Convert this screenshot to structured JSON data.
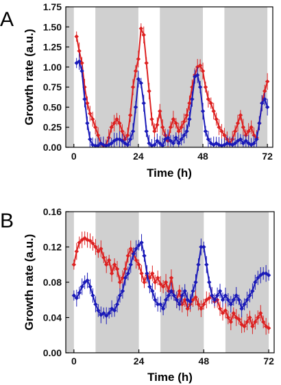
{
  "colors": {
    "red": "#dd2020",
    "blue": "#1a1ab8",
    "shade": "#d0d0d0"
  },
  "chart_data": [
    {
      "panel": "A",
      "type": "line",
      "xlabel": "Time (h)",
      "ylabel": "Growth rate (a.u.)",
      "xlim": [
        -3,
        74
      ],
      "ylim": [
        0,
        1.75
      ],
      "xticks": [
        "0",
        "24",
        "48",
        "72"
      ],
      "yticks": [
        "0.00",
        "0.25",
        "0.50",
        "0.75",
        "1.00",
        "1.25",
        "1.50",
        "1.75"
      ],
      "grid": false,
      "shaded_intervals": [
        [
          -3,
          0
        ],
        [
          8,
          24
        ],
        [
          32,
          48
        ],
        [
          56,
          72
        ]
      ],
      "series": [
        {
          "color": "red",
          "x": [
            1,
            2,
            3,
            4,
            5,
            6,
            7,
            8,
            9,
            10,
            11,
            12,
            13,
            14,
            15,
            16,
            17,
            18,
            19,
            20,
            21,
            22,
            23,
            24,
            25,
            26,
            27,
            28,
            29,
            30,
            31,
            32,
            33,
            34,
            35,
            36,
            37,
            38,
            39,
            40,
            41,
            42,
            43,
            44,
            45,
            46,
            47,
            48,
            49,
            50,
            51,
            52,
            53,
            54,
            55,
            56,
            57,
            58,
            59,
            60,
            61,
            62,
            63,
            64,
            65,
            66,
            67,
            68,
            69,
            70,
            71,
            72
          ],
          "y": [
            1.38,
            1.2,
            1.05,
            0.75,
            0.55,
            0.42,
            0.35,
            0.25,
            0.15,
            0.05,
            0.02,
            0.03,
            0.12,
            0.25,
            0.3,
            0.35,
            0.3,
            0.2,
            0.1,
            0.15,
            0.4,
            0.75,
            0.95,
            1.1,
            1.48,
            1.4,
            1.05,
            0.7,
            0.35,
            0.2,
            0.28,
            0.45,
            0.25,
            0.15,
            0.08,
            0.25,
            0.35,
            0.3,
            0.2,
            0.25,
            0.32,
            0.4,
            0.55,
            0.75,
            0.9,
            1.0,
            1.02,
            0.95,
            0.75,
            0.6,
            0.55,
            0.45,
            0.35,
            0.25,
            0.2,
            0.15,
            0.1,
            0.05,
            0.1,
            0.2,
            0.3,
            0.4,
            0.25,
            0.15,
            0.2,
            0.25,
            0.15,
            0.12,
            0.3,
            0.55,
            0.7,
            0.82
          ]
        },
        {
          "color": "blue",
          "x": [
            1,
            2,
            3,
            4,
            5,
            6,
            7,
            8,
            9,
            10,
            11,
            12,
            13,
            14,
            15,
            16,
            17,
            18,
            19,
            20,
            21,
            22,
            23,
            24,
            25,
            26,
            27,
            28,
            29,
            30,
            31,
            32,
            33,
            34,
            35,
            36,
            37,
            38,
            39,
            40,
            41,
            42,
            43,
            44,
            45,
            46,
            47,
            48,
            49,
            50,
            51,
            52,
            53,
            54,
            55,
            56,
            57,
            58,
            59,
            60,
            61,
            62,
            63,
            64,
            65,
            66,
            67,
            68,
            69,
            70,
            71,
            72
          ],
          "y": [
            1.05,
            1.07,
            0.95,
            0.6,
            0.3,
            0.1,
            0.03,
            0.02,
            0.02,
            0.05,
            0.03,
            0.02,
            0.03,
            0.05,
            0.08,
            0.1,
            0.1,
            0.08,
            0.05,
            0.03,
            0.1,
            0.2,
            0.5,
            0.85,
            0.8,
            0.55,
            0.2,
            0.05,
            0.02,
            0.03,
            0.08,
            0.05,
            0.02,
            0.1,
            0.12,
            0.08,
            0.05,
            0.12,
            0.05,
            0.1,
            0.15,
            0.2,
            0.35,
            0.6,
            0.88,
            0.9,
            0.75,
            0.45,
            0.2,
            0.1,
            0.05,
            0.03,
            0.05,
            0.03,
            0.02,
            0.03,
            0.05,
            0.04,
            0.03,
            0.05,
            0.08,
            0.1,
            0.05,
            0.08,
            0.05,
            0.03,
            0.05,
            0.1,
            0.3,
            0.55,
            0.6,
            0.5
          ]
        }
      ]
    },
    {
      "panel": "B",
      "type": "line",
      "xlabel": "Time (h)",
      "ylabel": "Growth rate (a.u.)",
      "xlim": [
        -3,
        74
      ],
      "ylim": [
        0,
        0.16
      ],
      "xticks": [
        "0",
        "24",
        "48",
        "72"
      ],
      "yticks": [
        "0.00",
        "0.04",
        "0.08",
        "0.12",
        "0.16"
      ],
      "grid": false,
      "shaded_intervals": [
        [
          -3,
          0
        ],
        [
          8,
          24
        ],
        [
          32,
          48
        ],
        [
          56,
          72
        ]
      ],
      "series": [
        {
          "color": "red",
          "x": [
            0,
            1,
            2,
            3,
            4,
            5,
            6,
            7,
            8,
            9,
            10,
            11,
            12,
            13,
            14,
            15,
            16,
            17,
            18,
            19,
            20,
            21,
            22,
            23,
            24,
            25,
            26,
            27,
            28,
            29,
            30,
            31,
            32,
            33,
            34,
            35,
            36,
            37,
            38,
            39,
            40,
            41,
            42,
            43,
            44,
            45,
            46,
            47,
            48,
            49,
            50,
            51,
            52,
            53,
            54,
            55,
            56,
            57,
            58,
            59,
            60,
            61,
            62,
            63,
            64,
            65,
            66,
            67,
            68,
            69,
            70,
            71,
            72
          ],
          "y": [
            0.1,
            0.115,
            0.125,
            0.128,
            0.13,
            0.128,
            0.127,
            0.124,
            0.12,
            0.115,
            0.118,
            0.108,
            0.1,
            0.105,
            0.09,
            0.1,
            0.095,
            0.08,
            0.085,
            0.095,
            0.11,
            0.118,
            0.113,
            0.105,
            0.1,
            0.09,
            0.08,
            0.088,
            0.085,
            0.09,
            0.08,
            0.085,
            0.078,
            0.075,
            0.08,
            0.07,
            0.085,
            0.065,
            0.06,
            0.07,
            0.055,
            0.06,
            0.05,
            0.055,
            0.06,
            0.063,
            0.055,
            0.05,
            0.055,
            0.06,
            0.062,
            0.065,
            0.058,
            0.06,
            0.05,
            0.045,
            0.048,
            0.04,
            0.035,
            0.045,
            0.04,
            0.038,
            0.032,
            0.03,
            0.035,
            0.04,
            0.03,
            0.035,
            0.04,
            0.045,
            0.035,
            0.03,
            0.028
          ]
        },
        {
          "color": "blue",
          "x": [
            0,
            1,
            2,
            3,
            4,
            5,
            6,
            7,
            8,
            9,
            10,
            11,
            12,
            13,
            14,
            15,
            16,
            17,
            18,
            19,
            20,
            21,
            22,
            23,
            24,
            25,
            26,
            27,
            28,
            29,
            30,
            31,
            32,
            33,
            34,
            35,
            36,
            37,
            38,
            39,
            40,
            41,
            42,
            43,
            44,
            45,
            46,
            47,
            48,
            49,
            50,
            51,
            52,
            53,
            54,
            55,
            56,
            57,
            58,
            59,
            60,
            61,
            62,
            63,
            64,
            65,
            66,
            67,
            68,
            69,
            70,
            71,
            72
          ],
          "y": [
            0.065,
            0.062,
            0.068,
            0.075,
            0.08,
            0.082,
            0.075,
            0.065,
            0.055,
            0.048,
            0.043,
            0.045,
            0.042,
            0.045,
            0.05,
            0.048,
            0.055,
            0.065,
            0.07,
            0.085,
            0.09,
            0.1,
            0.112,
            0.118,
            0.122,
            0.125,
            0.11,
            0.09,
            0.075,
            0.07,
            0.06,
            0.055,
            0.055,
            0.05,
            0.06,
            0.065,
            0.07,
            0.065,
            0.06,
            0.055,
            0.065,
            0.07,
            0.06,
            0.058,
            0.07,
            0.08,
            0.1,
            0.12,
            0.12,
            0.1,
            0.08,
            0.065,
            0.06,
            0.065,
            0.07,
            0.06,
            0.065,
            0.06,
            0.055,
            0.06,
            0.065,
            0.06,
            0.05,
            0.055,
            0.06,
            0.065,
            0.07,
            0.08,
            0.085,
            0.088,
            0.09,
            0.09,
            0.088
          ]
        }
      ]
    }
  ]
}
